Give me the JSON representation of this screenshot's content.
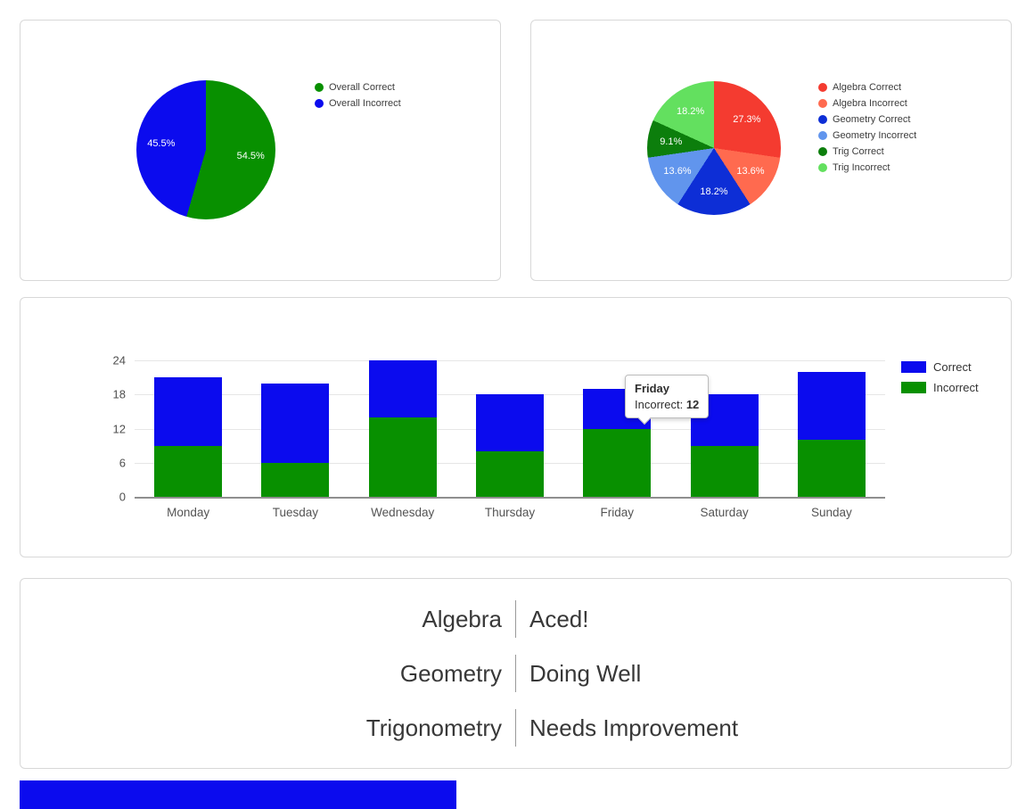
{
  "page": {
    "background": "#ffffff",
    "card_border": "#d8d8d8"
  },
  "chart_data": [
    {
      "type": "pie",
      "values": [
        54.5,
        45.5
      ],
      "colors": [
        "#089000",
        "#0b0bee"
      ],
      "slice_labels": [
        "54.5%",
        "45.5%"
      ],
      "legend_position": "right",
      "legend": [
        {
          "label": "Overall Correct",
          "color": "#089000"
        },
        {
          "label": "Overall Incorrect",
          "color": "#0b0bee"
        }
      ]
    },
    {
      "type": "pie",
      "values": [
        27.3,
        13.6,
        18.2,
        13.6,
        9.1,
        18.2
      ],
      "colors": [
        "#f43b30",
        "#ff6a4f",
        "#0d2ed6",
        "#6195ed",
        "#0c7e0c",
        "#63e05f"
      ],
      "slice_labels": [
        "27.3%",
        "13.6%",
        "18.2%",
        "13.6%",
        "9.1%",
        "18.2%"
      ],
      "legend_position": "right",
      "legend": [
        {
          "label": "Algebra Correct",
          "color": "#f43b30"
        },
        {
          "label": "Algebra Incorrect",
          "color": "#ff6a4f"
        },
        {
          "label": "Geometry Correct",
          "color": "#0d2ed6"
        },
        {
          "label": "Geometry Incorrect",
          "color": "#6195ed"
        },
        {
          "label": "Trig Correct",
          "color": "#0c7e0c"
        },
        {
          "label": "Trig Incorrect",
          "color": "#63e05f"
        }
      ]
    },
    {
      "type": "bar",
      "stacked": true,
      "grid": true,
      "categories": [
        "Monday",
        "Tuesday",
        "Wednesday",
        "Thursday",
        "Friday",
        "Saturday",
        "Sunday"
      ],
      "series": [
        {
          "name": "Incorrect",
          "color": "#089000",
          "values": [
            9,
            6,
            14,
            8,
            12,
            9,
            10
          ]
        },
        {
          "name": "Correct",
          "color": "#0b0bee",
          "values": [
            12,
            14,
            10,
            10,
            7,
            9,
            12
          ]
        }
      ],
      "ylim": [
        0,
        24
      ],
      "yticks": [
        0,
        6,
        12,
        18,
        24
      ],
      "legend_position": "right",
      "legend": [
        {
          "label": "Correct",
          "color": "#0b0bee"
        },
        {
          "label": "Incorrect",
          "color": "#089000"
        }
      ],
      "tooltip": {
        "title": "Friday",
        "label": "Incorrect:",
        "value": "12"
      }
    },
    {
      "type": "table",
      "rows": [
        [
          "Algebra",
          "Aced!"
        ],
        [
          "Geometry",
          "Doing Well"
        ],
        [
          "Trigonometry",
          "Needs Improvement"
        ]
      ]
    }
  ],
  "partial_bottom_bar": {
    "color": "#0b0bee"
  }
}
